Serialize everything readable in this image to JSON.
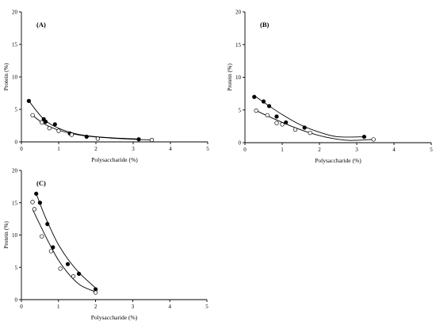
{
  "chart_data": [
    {
      "type": "scatter",
      "panel_label": "(A)",
      "xlabel": "Polysaccharide (%)",
      "ylabel": "Protein (%)",
      "xlim": [
        0,
        5
      ],
      "ylim": [
        0,
        20
      ],
      "xticks": [
        "0",
        "1",
        "2",
        "3",
        "4",
        "5"
      ],
      "yticks": [
        "0",
        "5",
        "10",
        "15",
        "20"
      ],
      "series": [
        {
          "marker": "filled",
          "points": [
            [
              0.2,
              6.3
            ],
            [
              0.6,
              3.5
            ],
            [
              0.65,
              3.1
            ],
            [
              0.9,
              2.7
            ],
            [
              1.3,
              1.3
            ],
            [
              1.75,
              0.8
            ],
            [
              3.15,
              0.4
            ]
          ],
          "fit": [
            [
              0.2,
              6.3
            ],
            [
              0.6,
              3.5
            ],
            [
              1.0,
              2.1
            ],
            [
              1.5,
              1.2
            ],
            [
              2.0,
              0.8
            ],
            [
              2.5,
              0.6
            ],
            [
              3.15,
              0.45
            ]
          ]
        },
        {
          "marker": "open",
          "points": [
            [
              0.3,
              4.1
            ],
            [
              0.55,
              3.0
            ],
            [
              0.75,
              2.1
            ],
            [
              1.0,
              1.7
            ],
            [
              1.35,
              1.1
            ],
            [
              2.05,
              0.5
            ],
            [
              3.5,
              0.3
            ]
          ],
          "fit": [
            [
              0.3,
              4.1
            ],
            [
              0.6,
              2.8
            ],
            [
              1.0,
              1.8
            ],
            [
              1.5,
              1.1
            ],
            [
              2.0,
              0.75
            ],
            [
              2.5,
              0.55
            ],
            [
              3.0,
              0.4
            ],
            [
              3.5,
              0.3
            ]
          ]
        }
      ]
    },
    {
      "type": "scatter",
      "panel_label": "(B)",
      "xlabel": "Polysaccharide (%)",
      "ylabel": "Protein (%)",
      "xlim": [
        0,
        5
      ],
      "ylim": [
        0,
        20
      ],
      "xticks": [
        "0",
        "1",
        "2",
        "3",
        "4",
        "5"
      ],
      "yticks": [
        "0",
        "5",
        "10",
        "15",
        "20"
      ],
      "series": [
        {
          "marker": "filled",
          "points": [
            [
              0.25,
              7.0
            ],
            [
              0.5,
              6.3
            ],
            [
              0.65,
              5.6
            ],
            [
              0.85,
              4.0
            ],
            [
              1.1,
              3.1
            ],
            [
              1.6,
              2.3
            ],
            [
              3.2,
              0.9
            ]
          ],
          "fit": [
            [
              0.25,
              7.2
            ],
            [
              0.5,
              6.2
            ],
            [
              1.0,
              4.3
            ],
            [
              1.5,
              2.7
            ],
            [
              2.0,
              1.6
            ],
            [
              2.5,
              0.9
            ],
            [
              3.2,
              0.9
            ]
          ]
        },
        {
          "marker": "open",
          "points": [
            [
              0.3,
              4.9
            ],
            [
              0.6,
              4.2
            ],
            [
              0.85,
              3.0
            ],
            [
              1.0,
              2.8
            ],
            [
              1.35,
              2.0
            ],
            [
              1.75,
              1.5
            ],
            [
              3.45,
              0.5
            ]
          ],
          "fit": [
            [
              0.3,
              4.9
            ],
            [
              0.8,
              3.6
            ],
            [
              1.3,
              2.4
            ],
            [
              1.8,
              1.4
            ],
            [
              2.3,
              0.7
            ],
            [
              2.8,
              0.35
            ],
            [
              3.45,
              0.5
            ]
          ]
        }
      ]
    },
    {
      "type": "scatter",
      "panel_label": "(C)",
      "xlabel": "Polysaccharide (%)",
      "ylabel": "Protein (%)",
      "xlim": [
        0,
        5
      ],
      "ylim": [
        0,
        20
      ],
      "xticks": [
        "0",
        "1",
        "2",
        "3",
        "4",
        "5"
      ],
      "yticks": [
        "0",
        "5",
        "10",
        "15",
        "20"
      ],
      "series": [
        {
          "marker": "filled",
          "points": [
            [
              0.4,
              16.4
            ],
            [
              0.5,
              15.0
            ],
            [
              0.7,
              11.7
            ],
            [
              0.85,
              8.1
            ],
            [
              1.25,
              5.5
            ],
            [
              1.55,
              4.0
            ],
            [
              2.0,
              1.6
            ]
          ],
          "fit": [
            [
              0.4,
              16.4
            ],
            [
              0.6,
              13.4
            ],
            [
              0.8,
              10.8
            ],
            [
              1.0,
              8.5
            ],
            [
              1.3,
              5.9
            ],
            [
              1.6,
              3.9
            ],
            [
              2.0,
              1.8
            ]
          ]
        },
        {
          "marker": "open",
          "points": [
            [
              0.3,
              15.1
            ],
            [
              0.35,
              14.0
            ],
            [
              0.55,
              9.8
            ],
            [
              0.8,
              7.5
            ],
            [
              1.05,
              4.8
            ],
            [
              1.4,
              3.6
            ],
            [
              2.0,
              1.1
            ]
          ],
          "fit": [
            [
              0.3,
              14.0
            ],
            [
              0.5,
              11.6
            ],
            [
              0.75,
              8.7
            ],
            [
              1.0,
              6.1
            ],
            [
              1.3,
              3.8
            ],
            [
              1.6,
              2.2
            ],
            [
              2.0,
              1.2
            ]
          ]
        }
      ]
    }
  ]
}
